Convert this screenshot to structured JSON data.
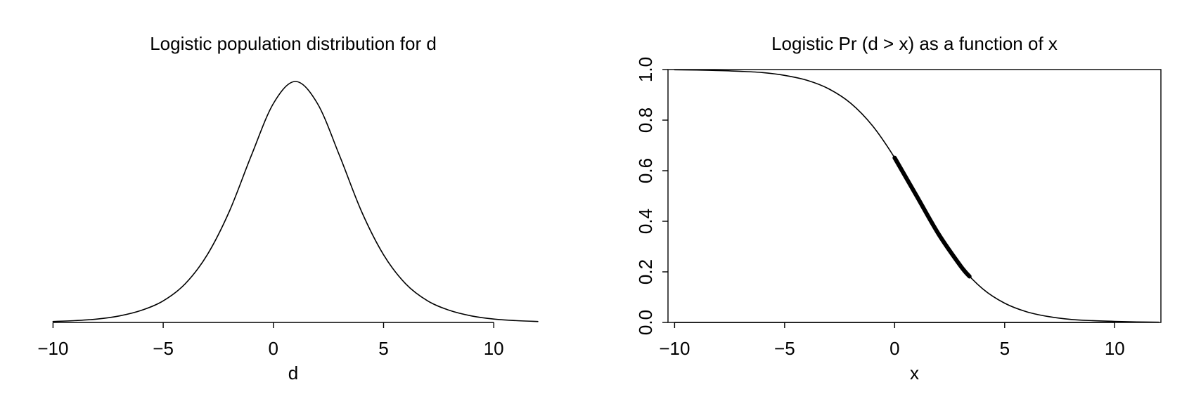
{
  "chart_data": [
    {
      "type": "line",
      "title": "Logistic population distribution for d",
      "xlabel": "d",
      "xlim": [
        -10.3,
        12.1
      ],
      "xticks": [
        {
          "value": -10,
          "label": "−10"
        },
        {
          "value": -5,
          "label": "−5"
        },
        0,
        5,
        10
      ],
      "series": [
        {
          "color": "#000000",
          "linewidth": 1.6,
          "x": [
            -10,
            -9,
            -8,
            -7,
            -6,
            -5,
            -4,
            -3,
            -2,
            -1,
            0,
            1,
            2,
            3,
            4,
            5,
            6,
            7,
            8,
            9,
            10,
            11,
            12
          ],
          "values": [
            0.0006,
            0.0012,
            0.0022,
            0.0042,
            0.0078,
            0.014,
            0.0251,
            0.0439,
            0.072,
            0.1083,
            0.142,
            0.1563,
            0.142,
            0.1083,
            0.072,
            0.0439,
            0.0251,
            0.014,
            0.0078,
            0.0042,
            0.0022,
            0.0012,
            0.0006
          ]
        }
      ]
    },
    {
      "type": "line",
      "title": "Logistic Pr (d > x) as a function of x",
      "xlabel": "x",
      "xlim": [
        -10.3,
        12.1
      ],
      "ylim": [
        0,
        1
      ],
      "xticks": [
        {
          "value": -10,
          "label": "−10"
        },
        {
          "value": -5,
          "label": "−5"
        },
        0,
        5,
        10
      ],
      "yticks": [
        {
          "value": 0,
          "label": "0.0"
        },
        {
          "value": 0.2,
          "label": "0.2"
        },
        {
          "value": 0.4,
          "label": "0.4"
        },
        {
          "value": 0.6,
          "label": "0.6"
        },
        {
          "value": 0.8,
          "label": "0.8"
        },
        {
          "value": 1,
          "label": "1.0"
        }
      ],
      "series": [
        {
          "color": "#000000",
          "linewidth": 1.6,
          "x": [
            -10,
            -9,
            -8,
            -7,
            -6,
            -5,
            -4,
            -3,
            -2,
            -1,
            0,
            1,
            2,
            3,
            4,
            5,
            6,
            7,
            8,
            9,
            10,
            11,
            12
          ],
          "values": [
            0.999,
            0.998,
            0.996,
            0.993,
            0.988,
            0.977,
            0.958,
            0.924,
            0.867,
            0.777,
            0.651,
            0.5,
            0.349,
            0.223,
            0.133,
            0.076,
            0.042,
            0.023,
            0.012,
            0.007,
            0.004,
            0.002,
            0.001
          ]
        },
        {
          "color": "#000000",
          "linewidth": 6,
          "x": [
            0,
            1,
            2,
            3,
            3.4
          ],
          "values": [
            0.651,
            0.5,
            0.349,
            0.223,
            0.182
          ]
        }
      ]
    }
  ]
}
